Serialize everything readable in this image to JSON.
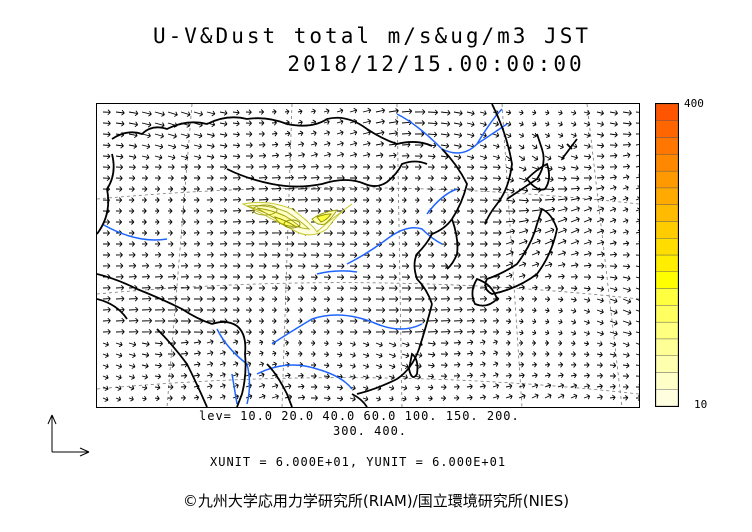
{
  "header": {
    "title_line1": "U-V&Dust total m/s&ug/m3 JST",
    "title_line2": "2018/12/15.00:00:00"
  },
  "colorbar": {
    "max_label": "400",
    "min_label": "10",
    "colors": [
      "#FFFFE0",
      "#FFFFC8",
      "#FFFFB0",
      "#FFFF98",
      "#FFFF80",
      "#FFFF60",
      "#FFFF40",
      "#FFFF00",
      "#FFEE00",
      "#FFDD00",
      "#FFCC00",
      "#FFBB00",
      "#FFAA00",
      "#FF9900",
      "#FF8800",
      "#FF7700",
      "#FF6600",
      "#FF5500"
    ]
  },
  "contour_levels": {
    "line1": "lev= 10.0 20.0 40.0 60.0 100. 150. 200.",
    "line2": "300. 400."
  },
  "units": {
    "text": "XUNIT = 6.000E+01, YUNIT = 6.000E+01"
  },
  "copyright": "©九州大学応用力学研究所(RIAM)/国立環境研究所(NIES)",
  "map_colors": {
    "coast": "#000000",
    "river": "#1E64FF",
    "grid": "#777777",
    "dust": "#C8C830"
  }
}
